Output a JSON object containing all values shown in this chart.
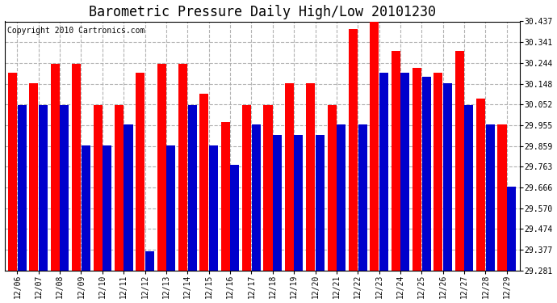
{
  "title": "Barometric Pressure Daily High/Low 20101230",
  "copyright": "Copyright 2010 Cartronics.com",
  "dates": [
    "12/06",
    "12/07",
    "12/08",
    "12/09",
    "12/10",
    "12/11",
    "12/12",
    "12/13",
    "12/14",
    "12/15",
    "12/16",
    "12/17",
    "12/18",
    "12/19",
    "12/20",
    "12/21",
    "12/22",
    "12/23",
    "12/24",
    "12/25",
    "12/26",
    "12/27",
    "12/28",
    "12/29"
  ],
  "highs": [
    30.2,
    30.15,
    30.24,
    30.24,
    30.05,
    30.05,
    30.2,
    30.24,
    30.24,
    30.1,
    29.97,
    30.05,
    30.05,
    30.15,
    30.15,
    30.05,
    30.4,
    30.44,
    30.3,
    30.22,
    30.2,
    30.3,
    30.08,
    29.96
  ],
  "lows": [
    30.05,
    30.05,
    30.05,
    29.86,
    29.86,
    29.96,
    29.37,
    29.86,
    30.05,
    29.86,
    29.77,
    29.96,
    29.91,
    29.91,
    29.91,
    29.96,
    29.96,
    30.2,
    30.2,
    30.18,
    30.15,
    30.05,
    29.96,
    29.67
  ],
  "high_color": "#ff0000",
  "low_color": "#0000cc",
  "bg_color": "#ffffff",
  "plot_bg_color": "#ffffff",
  "grid_color": "#aaaaaa",
  "ymin": 29.281,
  "ymax": 30.437,
  "yticks": [
    29.281,
    29.377,
    29.474,
    29.57,
    29.666,
    29.763,
    29.859,
    29.955,
    30.052,
    30.148,
    30.244,
    30.341,
    30.437
  ],
  "title_fontsize": 12,
  "copyright_fontsize": 7
}
